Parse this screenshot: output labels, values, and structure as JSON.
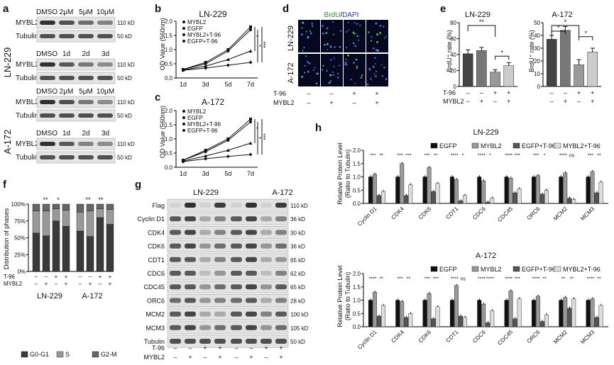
{
  "panel_letters": [
    "a",
    "b",
    "c",
    "d",
    "e",
    "f",
    "g",
    "h"
  ],
  "panel_a": {
    "cell_lines": [
      "LN-229",
      "A-172"
    ],
    "dose_labels": [
      "DMSO",
      "2μM",
      "5μM",
      "10μM"
    ],
    "time_labels": [
      "DMSO",
      "1d",
      "2d",
      "3d"
    ],
    "rows": [
      "MYBL2",
      "Tubulin"
    ],
    "kd": [
      "110 kD",
      "50 kD"
    ]
  },
  "panel_b": {
    "title": "LN-229",
    "ylabel": "OD Value (560nm)"
  },
  "panel_c": {
    "title": "A-172",
    "ylabel": "OD Value (560nm)"
  },
  "panel_d": {
    "stain_brdu": "BrdU",
    "stain_sep": "/",
    "stain_dapi": "DAPI",
    "rows": [
      "LN-229",
      "A-172"
    ],
    "cond_rows": [
      {
        "label": "T-96",
        "values": [
          "–",
          "–",
          "+",
          "+"
        ]
      },
      {
        "label": "MYBL2",
        "values": [
          "–",
          "+",
          "–",
          "+"
        ]
      }
    ]
  },
  "panel_e": {
    "ylabel": "BrdU⁺ rate (%)",
    "titles": [
      "LN-229",
      "A-172"
    ]
  },
  "panel_f": {
    "ylabel": "Distribution of phases",
    "cell_lines": [
      "LN-229",
      "A-172"
    ],
    "legend": [
      "G0-G1",
      "S",
      "G2-M"
    ]
  },
  "panel_g": {
    "cell_lines": [
      "LN-229",
      "A-172"
    ],
    "rows": [
      {
        "label": "Flag",
        "kd": "110 kD"
      },
      {
        "label": "Cyclin D1",
        "kd": "36 kD"
      },
      {
        "label": "CDK4",
        "kd": "30 kD"
      },
      {
        "label": "CDK6",
        "kd": "36 kD"
      },
      {
        "label": "CDT1",
        "kd": "65 kD"
      },
      {
        "label": "CDC6",
        "kd": "62 kD"
      },
      {
        "label": "CDC45",
        "kd": "65 kD"
      },
      {
        "label": "ORC6",
        "kd": "28 kD"
      },
      {
        "label": "MCM2",
        "kd": "100 kD"
      },
      {
        "label": "MCM3",
        "kd": "105 kD"
      },
      {
        "label": "Tubulin",
        "kd": "50 kD"
      }
    ]
  },
  "panel_h": {
    "ylabel_line1": "Relative Protein Level",
    "ylabel_line2": "(Ratio to Tubulin)"
  },
  "chart_data": [
    {
      "type": "line",
      "panel": "b",
      "title": "LN-229",
      "xlabel": "",
      "ylabel": "OD Value (560nm)",
      "x": [
        "1d",
        "3d",
        "5d",
        "7d"
      ],
      "ylim": [
        0,
        2.0
      ],
      "yticks": [
        0,
        0.5,
        1.0,
        1.5,
        2.0
      ],
      "series": [
        {
          "name": "MYBL2",
          "values": [
            0.3,
            0.55,
            1.0,
            1.8
          ]
        },
        {
          "name": "EGFP",
          "values": [
            0.3,
            0.5,
            0.95,
            1.7
          ]
        },
        {
          "name": "MYBL2+T-96",
          "values": [
            0.28,
            0.42,
            0.65,
            0.95
          ]
        },
        {
          "name": "EGFP+T-96",
          "values": [
            0.27,
            0.35,
            0.45,
            0.55
          ]
        }
      ],
      "annotations": [
        "*",
        "*",
        "***"
      ]
    },
    {
      "type": "line",
      "panel": "c",
      "title": "A-172",
      "xlabel": "",
      "ylabel": "OD Value (560nm)",
      "x": [
        "1d",
        "3d",
        "5d",
        "7d"
      ],
      "ylim": [
        0,
        2.0
      ],
      "yticks": [
        0,
        0.5,
        1.0,
        1.5,
        2.0
      ],
      "series": [
        {
          "name": "MYBL2",
          "values": [
            0.25,
            0.6,
            1.0,
            1.7
          ]
        },
        {
          "name": "EGFP",
          "values": [
            0.25,
            0.55,
            0.95,
            1.6
          ]
        },
        {
          "name": "MYBL2+T-96",
          "values": [
            0.22,
            0.4,
            0.6,
            0.85
          ]
        },
        {
          "name": "EGFP+T-96",
          "values": [
            0.2,
            0.3,
            0.38,
            0.45
          ]
        }
      ],
      "annotations": [
        "*",
        "*",
        "***"
      ]
    },
    {
      "type": "bar",
      "panel": "e",
      "title": "LN-229",
      "ylabel": "BrdU⁺ rate (%)",
      "ylim": [
        0,
        80
      ],
      "yticks": [
        0,
        20,
        40,
        60,
        80
      ],
      "values": [
        41,
        45,
        18,
        26
      ],
      "errors": [
        5,
        4,
        3,
        4
      ],
      "colors": [
        "#444444",
        "#777777",
        "#999999",
        "#cccccc"
      ],
      "annotations": [
        "**",
        "*"
      ]
    },
    {
      "type": "bar",
      "panel": "e",
      "title": "A-172",
      "ylabel": "BrdU⁺ rate (%)",
      "ylim": [
        0,
        50
      ],
      "yticks": [
        0,
        10,
        20,
        30,
        40,
        50
      ],
      "values": [
        37,
        44,
        17,
        27
      ],
      "errors": [
        3,
        3,
        4,
        3
      ],
      "colors": [
        "#444444",
        "#777777",
        "#999999",
        "#cccccc"
      ],
      "annotations": [
        "*",
        "**",
        "*"
      ]
    },
    {
      "type": "bar",
      "panel": "f",
      "ylabel": "Distribution of phases",
      "ylim": [
        0,
        100
      ],
      "yticks": [
        0,
        25,
        50,
        75,
        100
      ],
      "categories": [
        "LN-229 1",
        "LN-229 2",
        "LN-229 3",
        "LN-229 4",
        "A-172 1",
        "A-172 2",
        "A-172 3",
        "A-172 4"
      ],
      "series": [
        {
          "name": "G0-G1",
          "values": [
            57,
            53,
            75,
            67,
            60,
            52,
            80,
            70
          ]
        },
        {
          "name": "S",
          "values": [
            33,
            37,
            18,
            24,
            28,
            38,
            13,
            22
          ]
        },
        {
          "name": "G2-M",
          "values": [
            10,
            10,
            7,
            9,
            12,
            10,
            7,
            8
          ]
        }
      ],
      "annotations": [
        "**",
        "*",
        "**",
        "**"
      ]
    },
    {
      "type": "bar",
      "panel": "h",
      "title": "LN-229",
      "ylabel": "Relative Protein Level (Ratio to Tubulin)",
      "ylim": [
        0,
        2.0
      ],
      "yticks": [
        0,
        0.5,
        1.0,
        1.5,
        2.0
      ],
      "categories": [
        "Cyclin D1",
        "CDK4",
        "CDK6",
        "CDT1",
        "CDC6",
        "CDC45",
        "ORC6",
        "MCM2",
        "MCM3"
      ],
      "series": [
        {
          "name": "EGFP",
          "values": [
            1.0,
            1.0,
            1.0,
            1.0,
            1.0,
            1.0,
            1.0,
            1.0,
            1.0
          ]
        },
        {
          "name": "MYBL2",
          "values": [
            1.1,
            1.5,
            1.35,
            0.9,
            0.85,
            0.95,
            1.05,
            1.15,
            1.2
          ]
        },
        {
          "name": "EGFP+T-96",
          "values": [
            0.3,
            0.3,
            0.45,
            0.1,
            0.05,
            0.4,
            0.35,
            0.2,
            0.4
          ]
        },
        {
          "name": "MYBL2+T-96",
          "values": [
            0.45,
            0.7,
            0.75,
            0.3,
            0.2,
            0.55,
            0.5,
            0.15,
            0.8
          ]
        }
      ],
      "annotations": [
        "***",
        "**",
        "***",
        "***",
        "***",
        "**",
        "****",
        "*",
        "****",
        "*",
        "****",
        "***",
        "***",
        "*",
        "****",
        "ns",
        "***",
        "**"
      ]
    },
    {
      "type": "bar",
      "panel": "h",
      "title": "A-172",
      "ylabel": "Relative Protein Level (Ratio to Tubulin)",
      "ylim": [
        0,
        2.0
      ],
      "yticks": [
        0,
        0.5,
        1.0,
        1.5,
        2.0
      ],
      "categories": [
        "Cyclin D1",
        "CDK4",
        "CDK6",
        "CDT1",
        "CDC6",
        "CDC45",
        "ORC6",
        "MCM2",
        "MCM3"
      ],
      "series": [
        {
          "name": "EGFP",
          "values": [
            1.0,
            1.0,
            1.0,
            1.0,
            1.0,
            1.0,
            1.0,
            1.0,
            1.0
          ]
        },
        {
          "name": "MYBL2",
          "values": [
            1.3,
            0.95,
            1.25,
            1.55,
            0.85,
            1.35,
            1.15,
            1.1,
            1.05
          ]
        },
        {
          "name": "EGFP+T-96",
          "values": [
            0.4,
            0.35,
            0.3,
            0.4,
            0.15,
            0.3,
            0.2,
            0.7,
            0.35
          ]
        },
        {
          "name": "MYBL2+T-96",
          "values": [
            0.8,
            0.5,
            0.75,
            0.35,
            0.6,
            1.05,
            0.45,
            1.05,
            0.8
          ]
        }
      ],
      "annotations": [
        "****",
        "**",
        "***",
        "**",
        "***",
        "***",
        "****",
        "ns",
        "****",
        "****",
        "****",
        "***",
        "****",
        "**",
        "**",
        "**",
        "****",
        "**"
      ]
    }
  ]
}
